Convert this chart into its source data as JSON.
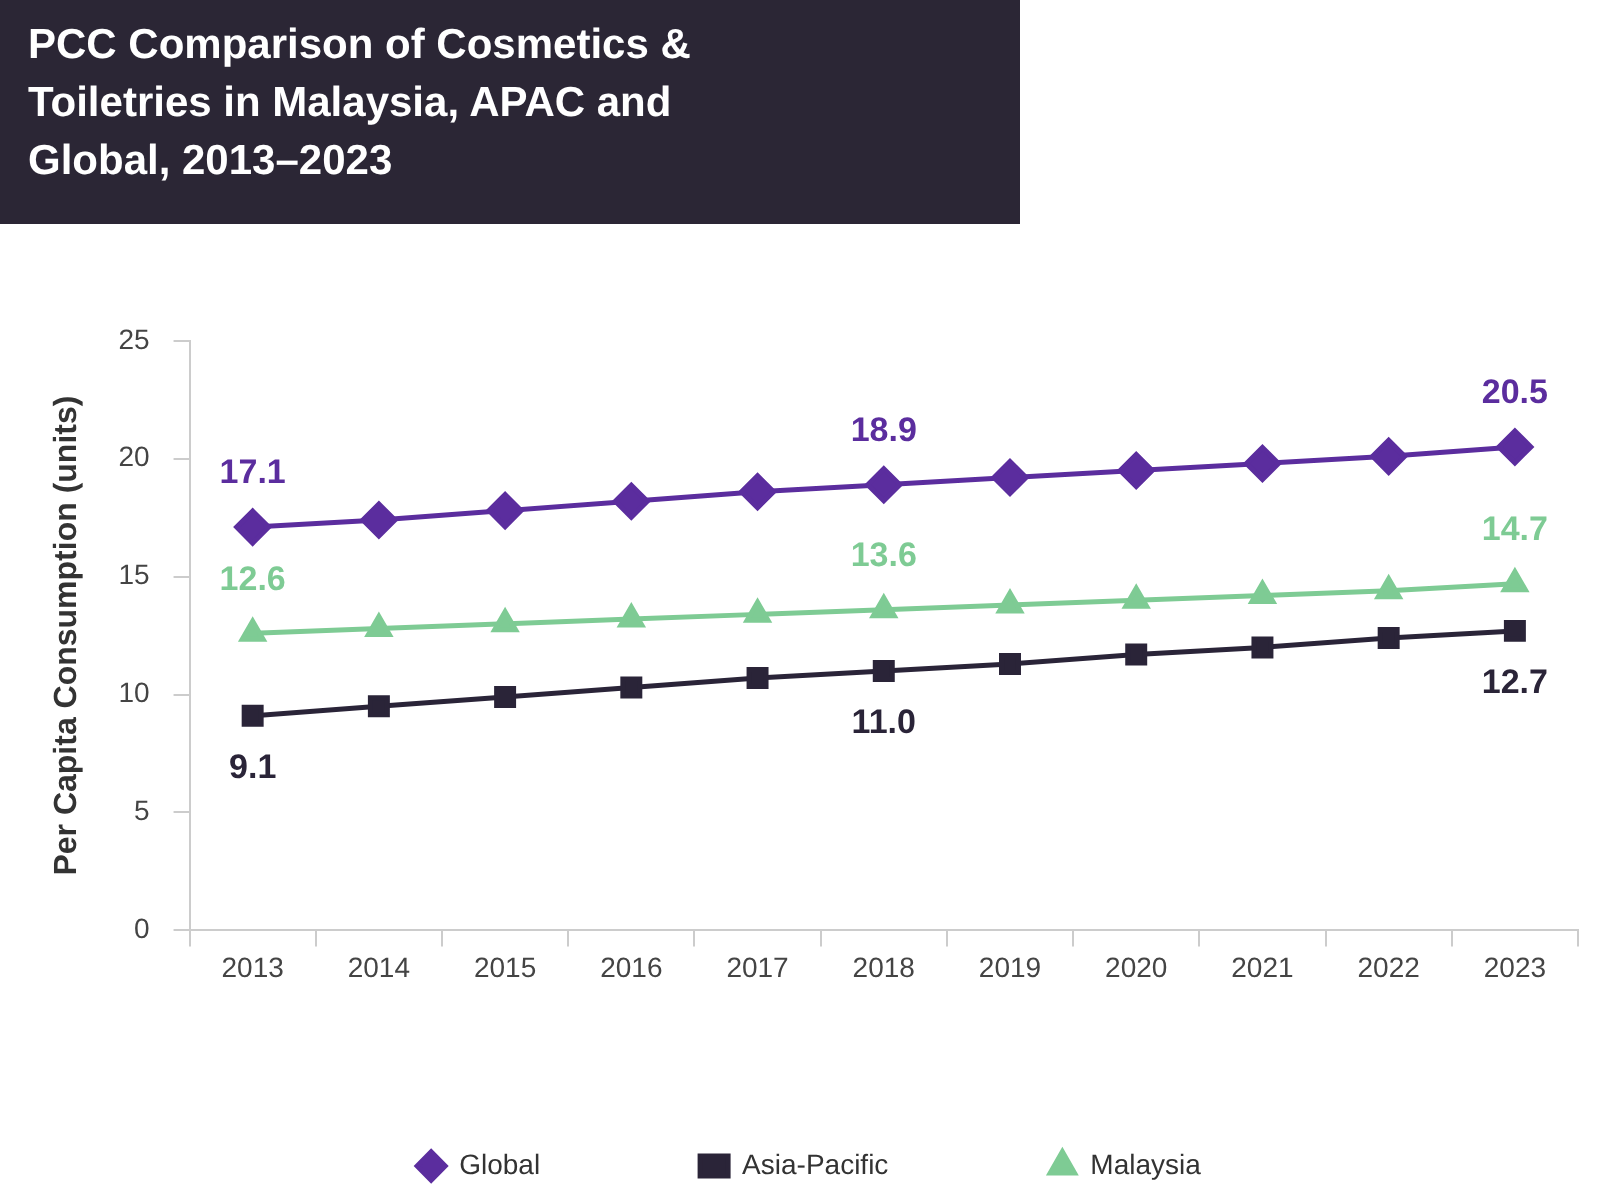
{
  "chart_data": {
    "type": "line",
    "title": "PCC Comparison of Cosmetics & Toiletries in Malaysia, APAC and Global, 2013–2023",
    "ylabel": "Per Capita Consumption (units)",
    "categories": [
      "2013",
      "2014",
      "2015",
      "2016",
      "2017",
      "2018",
      "2019",
      "2020",
      "2021",
      "2022",
      "2023"
    ],
    "series": [
      {
        "name": "Global",
        "color": "#5b2d9e",
        "marker": "diamond",
        "values": [
          17.1,
          17.4,
          17.8,
          18.2,
          18.6,
          18.9,
          19.2,
          19.5,
          19.8,
          20.1,
          20.5
        ],
        "value_labels": [
          "17.1",
          null,
          null,
          null,
          null,
          "18.9",
          null,
          null,
          null,
          null,
          "20.5"
        ]
      },
      {
        "name": "Asia-Pacific",
        "color": "#2a2438",
        "marker": "square",
        "values": [
          9.1,
          9.5,
          9.9,
          10.3,
          10.7,
          11.0,
          11.3,
          11.7,
          12.0,
          12.4,
          12.7
        ],
        "value_labels": [
          "9.1",
          null,
          null,
          null,
          null,
          "11.0",
          null,
          null,
          null,
          null,
          "12.7"
        ]
      },
      {
        "name": "Malaysia",
        "color": "#7ecb94",
        "marker": "triangle",
        "values": [
          12.6,
          12.8,
          13.0,
          13.2,
          13.4,
          13.6,
          13.8,
          14.0,
          14.2,
          14.4,
          14.7
        ],
        "value_labels": [
          "12.6",
          null,
          null,
          null,
          null,
          "13.6",
          null,
          null,
          null,
          null,
          "14.7"
        ]
      }
    ],
    "ylim": [
      0,
      25
    ],
    "yticks": [
      0,
      5,
      10,
      15,
      20,
      25
    ],
    "grid": false,
    "legend": "bottom",
    "line_style": "solid"
  }
}
